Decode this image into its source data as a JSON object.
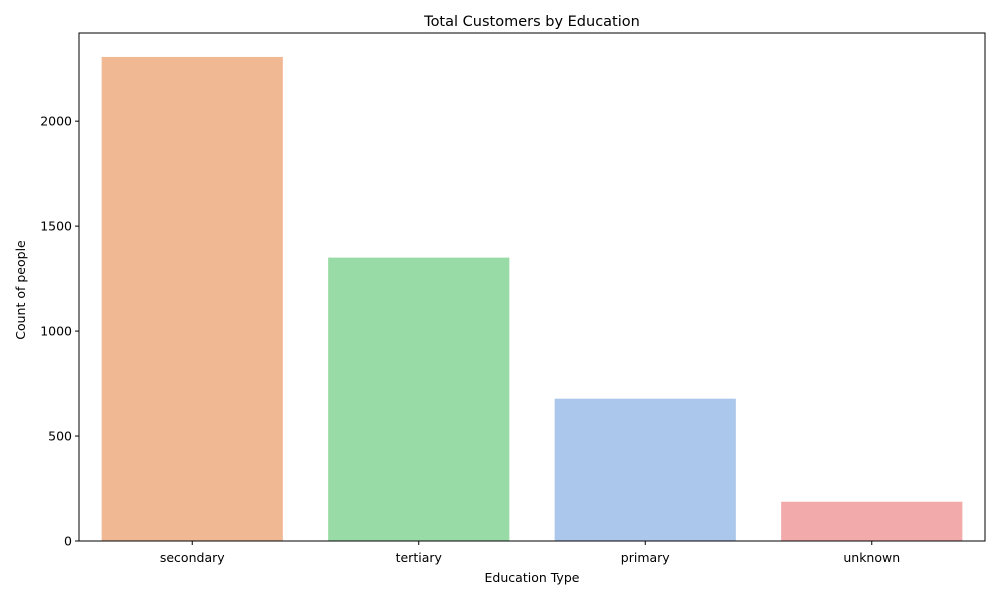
{
  "chart_data": {
    "type": "bar",
    "title": "Total Customers by Education",
    "xlabel": "Education Type",
    "ylabel": "Count of people",
    "categories": [
      "secondary",
      "tertiary",
      "primary",
      "unknown"
    ],
    "values": [
      2306,
      1350,
      678,
      187
    ],
    "colors": [
      "#f1b894",
      "#99dba7",
      "#abc8ec",
      "#f2aaaa"
    ],
    "ylim": [
      0,
      2420
    ],
    "yticks": [
      0,
      500,
      1000,
      1500,
      2000
    ],
    "grid": false
  }
}
